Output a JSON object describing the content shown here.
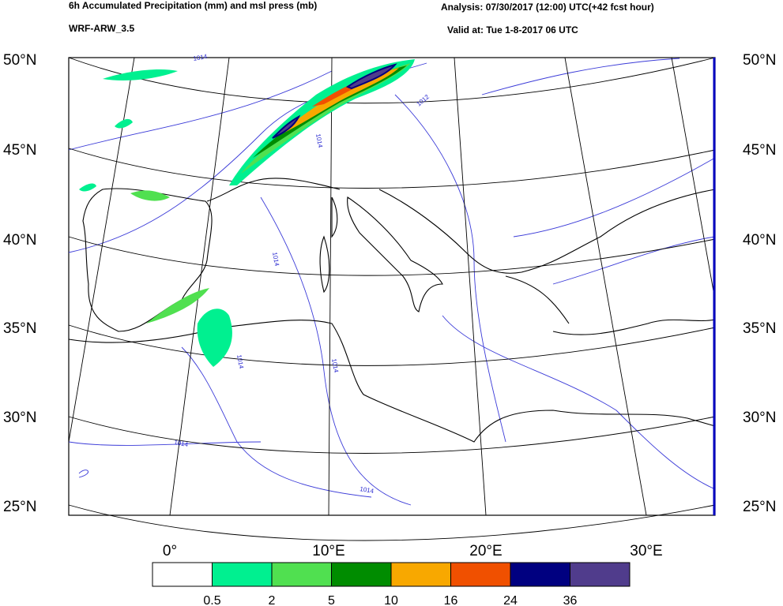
{
  "header": {
    "title": "6h Accumulated Precipitation (mm) and msl press (mb)",
    "model": "WRF-ARW_3.5",
    "analysis": "Analysis: 07/30/2017 (12:00) UTC(+42 fcst hour)",
    "valid": "Valid at: Tue 1-8-2017 06 UTC"
  },
  "map": {
    "lat_labels": [
      "50°N",
      "45°N",
      "40°N",
      "35°N",
      "30°N",
      "25°N"
    ],
    "lon_labels": [
      "0°",
      "10°E",
      "20°E",
      "30°E"
    ],
    "isobar_labels": [
      "1014",
      "1012",
      "1014",
      "1014",
      "1014",
      "1014",
      "1014",
      "1014"
    ]
  },
  "legend": {
    "colors": [
      "#ffffff",
      "#00f090",
      "#50e050",
      "#008c00",
      "#f8a800",
      "#f05000",
      "#000080",
      "#503c8c"
    ],
    "labels": [
      "0.5",
      "2",
      "5",
      "10",
      "16",
      "24",
      "36"
    ]
  }
}
